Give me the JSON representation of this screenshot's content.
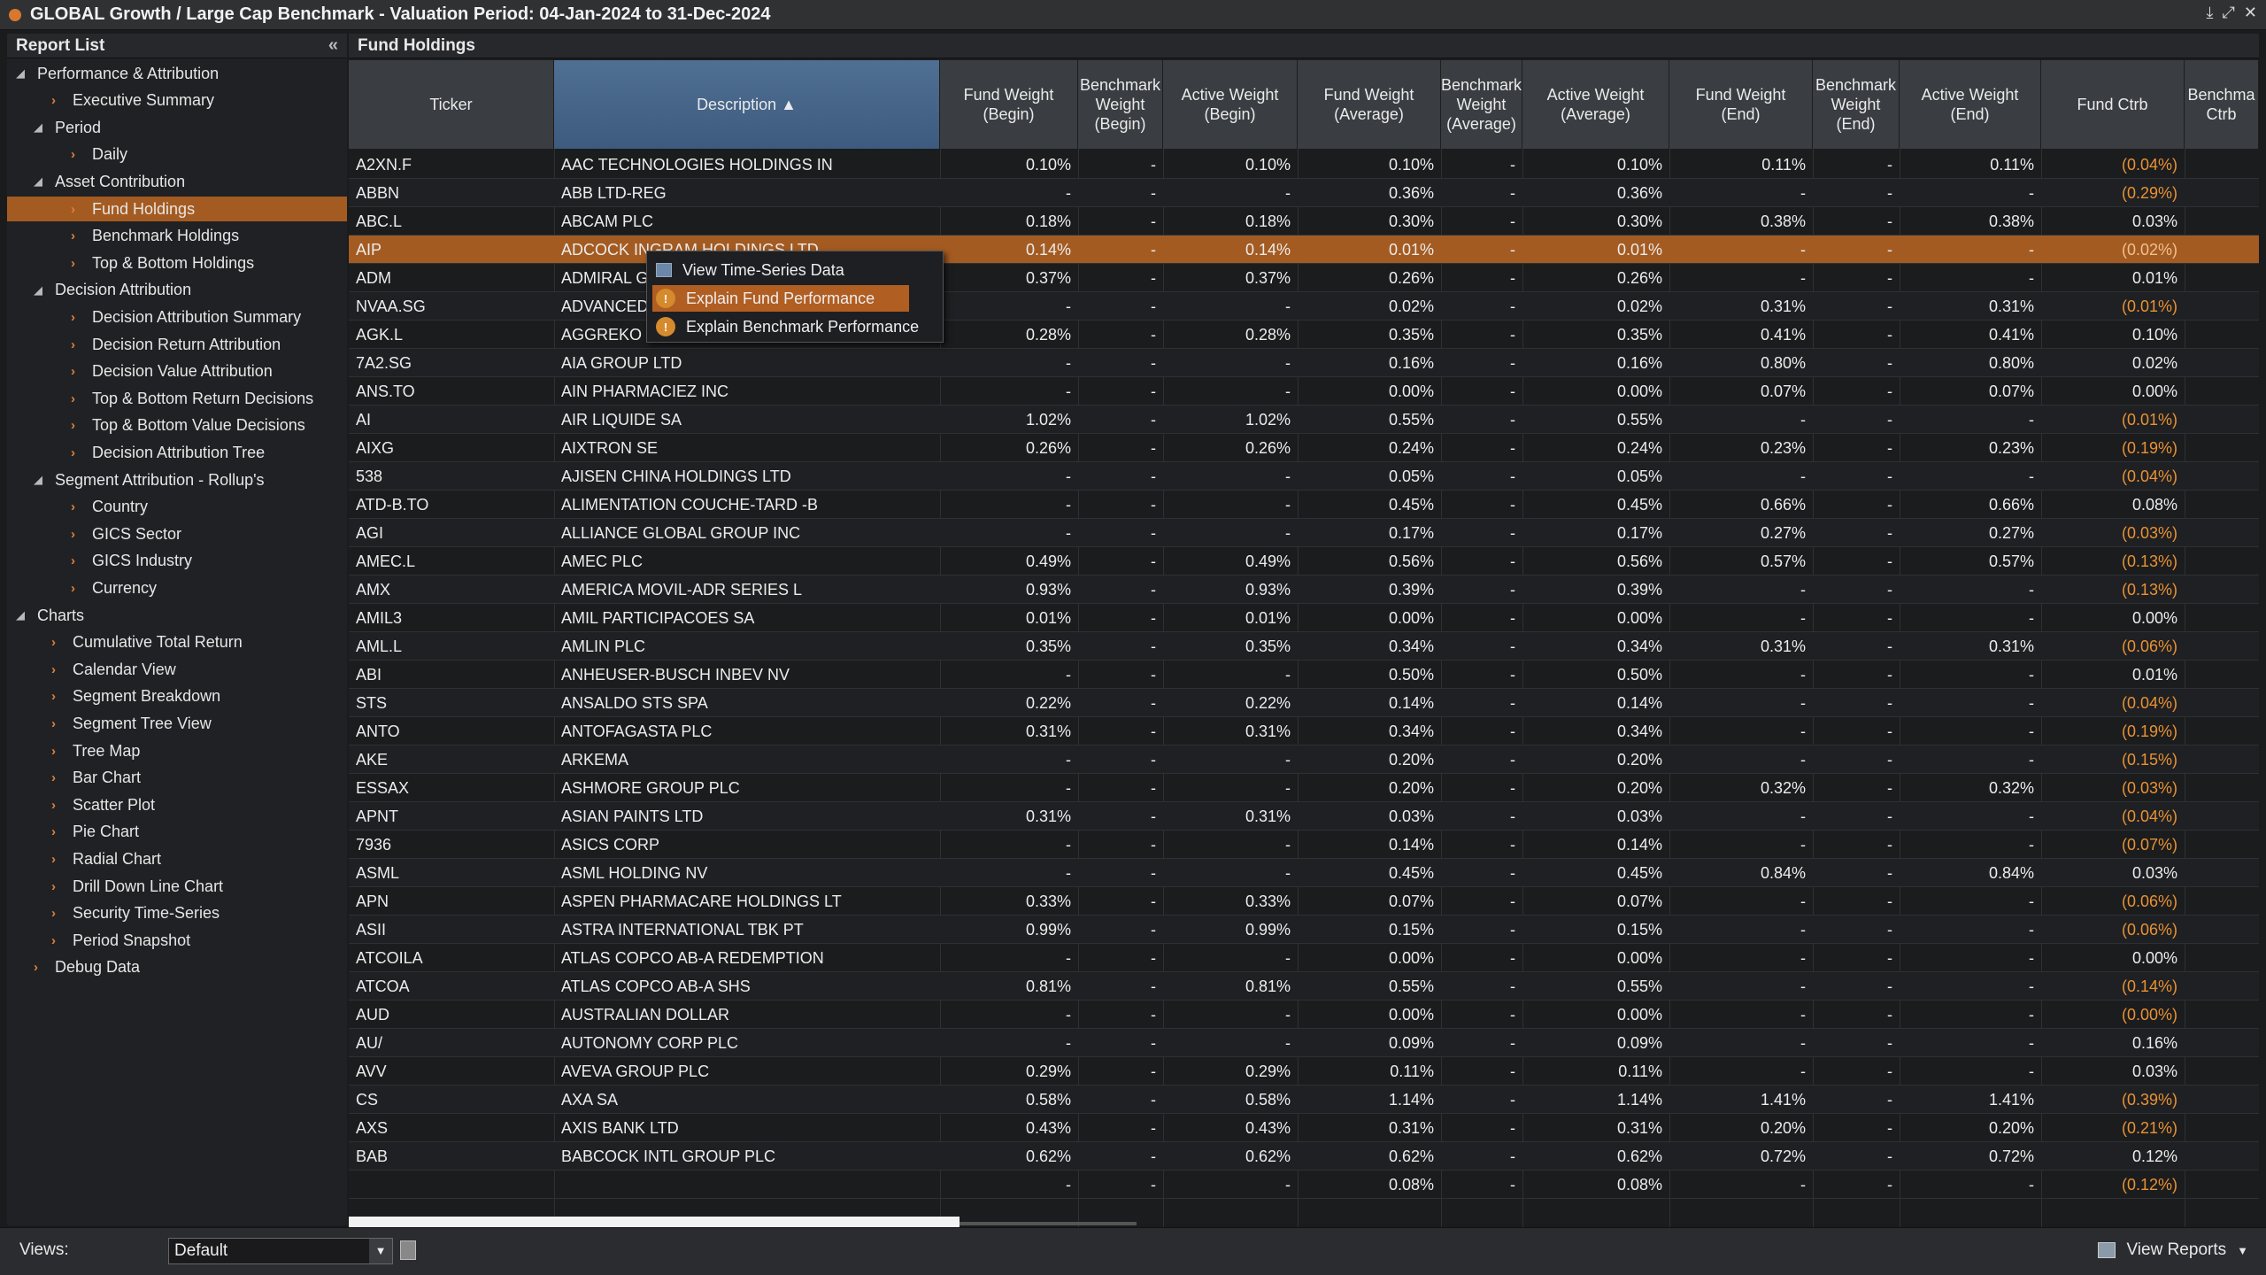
{
  "window": {
    "title": "GLOBAL Growth / Large Cap Benchmark - Valuation Period: 04-Jan-2024 to 31-Dec-2024",
    "controls": [
      "⤓",
      "⤢",
      "✕"
    ]
  },
  "report_list": {
    "title": "Report List",
    "collapse_icon": "«",
    "items": [
      {
        "label": "Performance & Attribution",
        "level": 0,
        "type": "folder"
      },
      {
        "label": "Executive Summary",
        "level": 2,
        "type": "report"
      },
      {
        "label": "Period",
        "level": 1,
        "type": "folder"
      },
      {
        "label": "Daily",
        "level": 3,
        "type": "report"
      },
      {
        "label": "Asset Contribution",
        "level": 1,
        "type": "folder"
      },
      {
        "label": "Fund Holdings",
        "level": 3,
        "type": "report",
        "selected": true
      },
      {
        "label": "Benchmark Holdings",
        "level": 3,
        "type": "report"
      },
      {
        "label": "Top & Bottom Holdings",
        "level": 3,
        "type": "report"
      },
      {
        "label": "Decision Attribution",
        "level": 1,
        "type": "folder"
      },
      {
        "label": "Decision Attribution Summary",
        "level": 3,
        "type": "report"
      },
      {
        "label": "Decision Return Attribution",
        "level": 3,
        "type": "report"
      },
      {
        "label": "Decision Value Attribution",
        "level": 3,
        "type": "report"
      },
      {
        "label": "Top & Bottom Return Decisions",
        "level": 3,
        "type": "report"
      },
      {
        "label": "Top & Bottom Value Decisions",
        "level": 3,
        "type": "report"
      },
      {
        "label": "Decision Attribution Tree",
        "level": 3,
        "type": "report"
      },
      {
        "label": "Segment Attribution - Rollup's",
        "level": 1,
        "type": "folder"
      },
      {
        "label": "Country",
        "level": 3,
        "type": "report"
      },
      {
        "label": "GICS Sector",
        "level": 3,
        "type": "report"
      },
      {
        "label": "GICS Industry",
        "level": 3,
        "type": "report"
      },
      {
        "label": "Currency",
        "level": 3,
        "type": "report"
      },
      {
        "label": "Charts",
        "level": 0,
        "type": "folder"
      },
      {
        "label": "Cumulative Total Return",
        "level": 2,
        "type": "report"
      },
      {
        "label": "Calendar View",
        "level": 2,
        "type": "report"
      },
      {
        "label": "Segment Breakdown",
        "level": 2,
        "type": "report"
      },
      {
        "label": "Segment Tree View",
        "level": 2,
        "type": "report"
      },
      {
        "label": "Tree Map",
        "level": 2,
        "type": "report"
      },
      {
        "label": "Bar Chart",
        "level": 2,
        "type": "report"
      },
      {
        "label": "Scatter Plot",
        "level": 2,
        "type": "report"
      },
      {
        "label": "Pie Chart",
        "level": 2,
        "type": "report"
      },
      {
        "label": "Radial Chart",
        "level": 2,
        "type": "report"
      },
      {
        "label": "Drill Down Line Chart",
        "level": 2,
        "type": "report"
      },
      {
        "label": "Security Time-Series",
        "level": 2,
        "type": "report"
      },
      {
        "label": "Period Snapshot",
        "level": 2,
        "type": "report"
      },
      {
        "label": "Debug Data",
        "level": 1,
        "type": "report"
      }
    ]
  },
  "fund_holdings": {
    "title": "Fund Holdings",
    "columns": [
      "Ticker",
      "Description ▲",
      "Fund Weight\n(Begin)",
      "Benchmark\nWeight\n(Begin)",
      "Active Weight\n(Begin)",
      "Fund Weight\n(Average)",
      "Benchmark\nWeight\n(Average)",
      "Active Weight\n(Average)",
      "Fund Weight\n(End)",
      "Benchmark\nWeight\n(End)",
      "Active Weight\n(End)",
      "Fund Ctrb",
      "Benchma\nCtrb"
    ],
    "rows": [
      [
        "A2XN.F",
        "AAC TECHNOLOGIES HOLDINGS IN",
        "0.10%",
        "-",
        "0.10%",
        "0.10%",
        "-",
        "0.10%",
        "0.11%",
        "-",
        "0.11%",
        "(0.04%)"
      ],
      [
        "ABBN",
        "ABB LTD-REG",
        "-",
        "-",
        "-",
        "0.36%",
        "-",
        "0.36%",
        "-",
        "-",
        "-",
        "(0.29%)"
      ],
      [
        "ABC.L",
        "ABCAM PLC",
        "0.18%",
        "-",
        "0.18%",
        "0.30%",
        "-",
        "0.30%",
        "0.38%",
        "-",
        "0.38%",
        "0.03%"
      ],
      [
        "AIP",
        "ADCOCK INGRAM HOLDINGS LTD",
        "0.14%",
        "-",
        "0.14%",
        "0.01%",
        "-",
        "0.01%",
        "-",
        "-",
        "-",
        "(0.02%)"
      ],
      [
        "ADM",
        "ADMIRAL G",
        "0.37%",
        "-",
        "0.37%",
        "0.26%",
        "-",
        "0.26%",
        "-",
        "-",
        "-",
        "0.01%"
      ],
      [
        "NVAA.SG",
        "ADVANCED",
        "-",
        "-",
        "-",
        "0.02%",
        "-",
        "0.02%",
        "0.31%",
        "-",
        "0.31%",
        "(0.01%)"
      ],
      [
        "AGK.L",
        "AGGREKO P",
        "0.28%",
        "-",
        "0.28%",
        "0.35%",
        "-",
        "0.35%",
        "0.41%",
        "-",
        "0.41%",
        "0.10%"
      ],
      [
        "7A2.SG",
        "AIA GROUP LTD",
        "-",
        "-",
        "-",
        "0.16%",
        "-",
        "0.16%",
        "0.80%",
        "-",
        "0.80%",
        "0.02%"
      ],
      [
        "ANS.TO",
        "AIN PHARMACIEZ INC",
        "-",
        "-",
        "-",
        "0.00%",
        "-",
        "0.00%",
        "0.07%",
        "-",
        "0.07%",
        "0.00%"
      ],
      [
        "AI",
        "AIR LIQUIDE SA",
        "1.02%",
        "-",
        "1.02%",
        "0.55%",
        "-",
        "0.55%",
        "-",
        "-",
        "-",
        "(0.01%)"
      ],
      [
        "AIXG",
        "AIXTRON SE",
        "0.26%",
        "-",
        "0.26%",
        "0.24%",
        "-",
        "0.24%",
        "0.23%",
        "-",
        "0.23%",
        "(0.19%)"
      ],
      [
        "538",
        "AJISEN CHINA HOLDINGS LTD",
        "-",
        "-",
        "-",
        "0.05%",
        "-",
        "0.05%",
        "-",
        "-",
        "-",
        "(0.04%)"
      ],
      [
        "ATD-B.TO",
        "ALIMENTATION COUCHE-TARD -B",
        "-",
        "-",
        "-",
        "0.45%",
        "-",
        "0.45%",
        "0.66%",
        "-",
        "0.66%",
        "0.08%"
      ],
      [
        "AGI",
        "ALLIANCE GLOBAL GROUP INC",
        "-",
        "-",
        "-",
        "0.17%",
        "-",
        "0.17%",
        "0.27%",
        "-",
        "0.27%",
        "(0.03%)"
      ],
      [
        "AMEC.L",
        "AMEC PLC",
        "0.49%",
        "-",
        "0.49%",
        "0.56%",
        "-",
        "0.56%",
        "0.57%",
        "-",
        "0.57%",
        "(0.13%)"
      ],
      [
        "AMX",
        "AMERICA MOVIL-ADR SERIES L",
        "0.93%",
        "-",
        "0.93%",
        "0.39%",
        "-",
        "0.39%",
        "-",
        "-",
        "-",
        "(0.13%)"
      ],
      [
        "AMIL3",
        "AMIL PARTICIPACOES SA",
        "0.01%",
        "-",
        "0.01%",
        "0.00%",
        "-",
        "0.00%",
        "-",
        "-",
        "-",
        "0.00%"
      ],
      [
        "AML.L",
        "AMLIN PLC",
        "0.35%",
        "-",
        "0.35%",
        "0.34%",
        "-",
        "0.34%",
        "0.31%",
        "-",
        "0.31%",
        "(0.06%)"
      ],
      [
        "ABI",
        "ANHEUSER-BUSCH INBEV NV",
        "-",
        "-",
        "-",
        "0.50%",
        "-",
        "0.50%",
        "-",
        "-",
        "-",
        "0.01%"
      ],
      [
        "STS",
        "ANSALDO STS SPA",
        "0.22%",
        "-",
        "0.22%",
        "0.14%",
        "-",
        "0.14%",
        "-",
        "-",
        "-",
        "(0.04%)"
      ],
      [
        "ANTO",
        "ANTOFAGASTA PLC",
        "0.31%",
        "-",
        "0.31%",
        "0.34%",
        "-",
        "0.34%",
        "-",
        "-",
        "-",
        "(0.19%)"
      ],
      [
        "AKE",
        "ARKEMA",
        "-",
        "-",
        "-",
        "0.20%",
        "-",
        "0.20%",
        "-",
        "-",
        "-",
        "(0.15%)"
      ],
      [
        "ESSAX",
        "ASHMORE GROUP PLC",
        "-",
        "-",
        "-",
        "0.20%",
        "-",
        "0.20%",
        "0.32%",
        "-",
        "0.32%",
        "(0.03%)"
      ],
      [
        "APNT",
        "ASIAN PAINTS LTD",
        "0.31%",
        "-",
        "0.31%",
        "0.03%",
        "-",
        "0.03%",
        "-",
        "-",
        "-",
        "(0.04%)"
      ],
      [
        "7936",
        "ASICS CORP",
        "-",
        "-",
        "-",
        "0.14%",
        "-",
        "0.14%",
        "-",
        "-",
        "-",
        "(0.07%)"
      ],
      [
        "ASML",
        "ASML HOLDING NV",
        "-",
        "-",
        "-",
        "0.45%",
        "-",
        "0.45%",
        "0.84%",
        "-",
        "0.84%",
        "0.03%"
      ],
      [
        "APN",
        "ASPEN PHARMACARE HOLDINGS LT",
        "0.33%",
        "-",
        "0.33%",
        "0.07%",
        "-",
        "0.07%",
        "-",
        "-",
        "-",
        "(0.06%)"
      ],
      [
        "ASII",
        "ASTRA INTERNATIONAL TBK PT",
        "0.99%",
        "-",
        "0.99%",
        "0.15%",
        "-",
        "0.15%",
        "-",
        "-",
        "-",
        "(0.06%)"
      ],
      [
        "ATCOILA",
        "ATLAS COPCO AB-A REDEMPTION",
        "-",
        "-",
        "-",
        "0.00%",
        "-",
        "0.00%",
        "-",
        "-",
        "-",
        "0.00%"
      ],
      [
        "ATCOA",
        "ATLAS COPCO AB-A SHS",
        "0.81%",
        "-",
        "0.81%",
        "0.55%",
        "-",
        "0.55%",
        "-",
        "-",
        "-",
        "(0.14%)"
      ],
      [
        "AUD",
        "AUSTRALIAN DOLLAR",
        "-",
        "-",
        "-",
        "0.00%",
        "-",
        "0.00%",
        "-",
        "-",
        "-",
        "(0.00%)"
      ],
      [
        "AU/",
        "AUTONOMY CORP PLC",
        "-",
        "-",
        "-",
        "0.09%",
        "-",
        "0.09%",
        "-",
        "-",
        "-",
        "0.16%"
      ],
      [
        "AVV",
        "AVEVA GROUP PLC",
        "0.29%",
        "-",
        "0.29%",
        "0.11%",
        "-",
        "0.11%",
        "-",
        "-",
        "-",
        "0.03%"
      ],
      [
        "CS",
        "AXA SA",
        "0.58%",
        "-",
        "0.58%",
        "1.14%",
        "-",
        "1.14%",
        "1.41%",
        "-",
        "1.41%",
        "(0.39%)"
      ],
      [
        "AXS",
        "AXIS BANK LTD",
        "0.43%",
        "-",
        "0.43%",
        "0.31%",
        "-",
        "0.31%",
        "0.20%",
        "-",
        "0.20%",
        "(0.21%)"
      ],
      [
        "BAB",
        "BABCOCK INTL GROUP PLC",
        "0.62%",
        "-",
        "0.62%",
        "0.62%",
        "-",
        "0.62%",
        "0.72%",
        "-",
        "0.72%",
        "0.12%"
      ],
      [
        "",
        "",
        "-",
        "-",
        "-",
        "0.08%",
        "-",
        "0.08%",
        "-",
        "-",
        "-",
        "(0.12%)"
      ]
    ],
    "highlighted_row": 3
  },
  "context_menu": {
    "items": [
      {
        "label": "View Time-Series Data",
        "icon": "table-icon"
      },
      {
        "label": "Explain Fund Performance",
        "icon": "info-icon",
        "active": true
      },
      {
        "label": "Explain Benchmark Performance",
        "icon": "info-icon"
      }
    ]
  },
  "bottom_bar": {
    "views_label": "Views:",
    "views_value": "Default",
    "view_reports_label": "View Reports",
    "dropdown_arrow": "▼"
  },
  "colors": {
    "accent": "#a45b21",
    "negative": "#e89234",
    "sorted_header": "#4f6f93"
  }
}
